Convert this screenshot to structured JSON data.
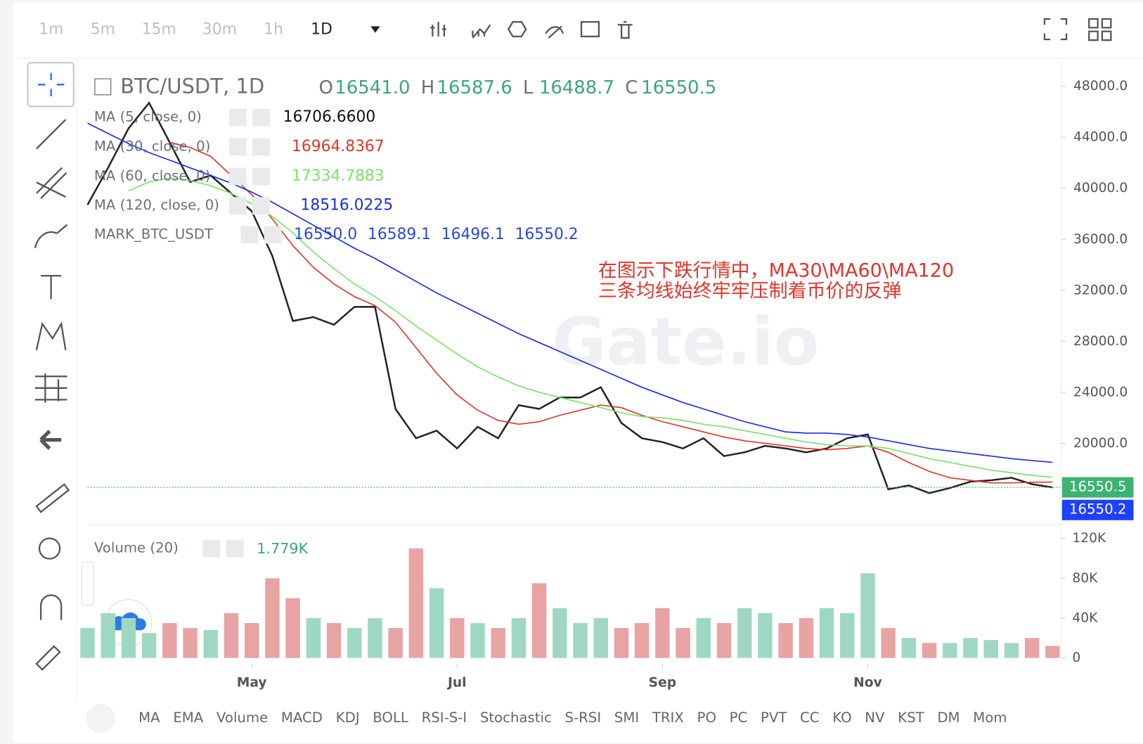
{
  "toolbar": {
    "intervals": [
      "1m",
      "5m",
      "15m",
      "30m",
      "1h",
      "1D"
    ]
  },
  "chart_data": {
    "type": "line",
    "symbol": "BTC/USDT, 1D",
    "ohlc": [
      {
        "key": "O",
        "text": "16541.0"
      },
      {
        "key": "H",
        "text": "16587.6"
      },
      {
        "key": "L",
        "text": "16488.7"
      },
      {
        "key": "C",
        "text": "16550.5"
      }
    ],
    "indicators": [
      {
        "name": "MA (5, close, 0)",
        "value": "16706.6600",
        "color": "#111111"
      },
      {
        "name": "MA (30, close, 0)",
        "value": "16964.8367",
        "color": "#e0352b"
      },
      {
        "name": "MA (60, close, 0)",
        "value": "17334.7883",
        "color": "#7be36a"
      },
      {
        "name": "MA (120, close, 0)",
        "value": "18516.0225",
        "color": "#1a2ee0"
      }
    ],
    "mark": {
      "name": "MARK_BTC_USDT",
      "values": [
        "16550.0",
        "16589.1",
        "16496.1",
        "16550.2"
      ]
    },
    "annotation": [
      "在图示下跌行情中，MA30\\MA60\\MA120",
      "三条均线始终牢牢压制着币价的反弹"
    ],
    "categories": [
      null,
      null,
      null,
      null,
      null,
      null,
      null,
      null,
      "May",
      null,
      null,
      null,
      null,
      null,
      null,
      null,
      null,
      null,
      "Jul",
      null,
      null,
      null,
      null,
      null,
      null,
      null,
      null,
      null,
      "Sep",
      null,
      null,
      null,
      null,
      null,
      null,
      null,
      null,
      null,
      "Nov",
      null,
      null,
      null,
      null,
      null,
      null,
      null,
      null,
      null
    ],
    "series": [
      {
        "name": "BTC/USDT",
        "color": "#222222",
        "values": [
          38700,
          41600,
          44700,
          46700,
          43600,
          40500,
          41000,
          39600,
          38200,
          34700,
          29600,
          29900,
          29300,
          30700,
          30700,
          22700,
          20400,
          21000,
          19600,
          21300,
          20400,
          23000,
          22700,
          23600,
          23600,
          24400,
          21600,
          20400,
          20100,
          19600,
          20400,
          19000,
          19300,
          19800,
          19600,
          19300,
          19600,
          20400,
          20700,
          16400,
          16700,
          16100,
          16500,
          17000,
          17100,
          17300,
          16800,
          16550
        ]
      },
      {
        "name": "MA30",
        "color": "#e0352b",
        "values": [
          null,
          null,
          null,
          null,
          43600,
          43200,
          42500,
          41000,
          39500,
          37600,
          35500,
          33800,
          32500,
          31500,
          30800,
          29500,
          27500,
          25500,
          23800,
          22600,
          21800,
          21500,
          21700,
          22200,
          22600,
          23000,
          22800,
          22200,
          21700,
          21300,
          20900,
          20500,
          20200,
          20000,
          19800,
          19600,
          19500,
          19600,
          19800,
          19300,
          18500,
          17800,
          17300,
          17100,
          16900,
          16900,
          16950,
          16965
        ]
      },
      {
        "name": "MA60",
        "color": "#7be36a",
        "values": [
          null,
          null,
          39800,
          40500,
          40800,
          40600,
          40200,
          39600,
          38800,
          37800,
          36500,
          35000,
          33700,
          32500,
          31500,
          30400,
          29200,
          28100,
          27000,
          26000,
          25200,
          24500,
          24000,
          23600,
          23200,
          22800,
          22400,
          22100,
          22000,
          21800,
          21500,
          21300,
          21000,
          20700,
          20400,
          20100,
          19900,
          19800,
          19800,
          19600,
          19200,
          18800,
          18500,
          18200,
          17900,
          17700,
          17500,
          17335
        ]
      },
      {
        "name": "MA120",
        "color": "#1a2ee0",
        "values": [
          45100,
          44300,
          43500,
          42800,
          42200,
          41600,
          41000,
          40400,
          39700,
          38900,
          38000,
          37100,
          36200,
          35300,
          34500,
          33600,
          32700,
          31800,
          31000,
          30200,
          29400,
          28600,
          27900,
          27200,
          26500,
          25800,
          25100,
          24400,
          23800,
          23200,
          22700,
          22200,
          21700,
          21300,
          20900,
          20800,
          20800,
          20700,
          20500,
          20200,
          19900,
          19600,
          19400,
          19200,
          19000,
          18800,
          18650,
          18516
        ]
      }
    ],
    "ylim": [
      13700,
      49900
    ],
    "yticks": [
      {
        "value": 48000,
        "label": "48000.0"
      },
      {
        "value": 44000,
        "label": "44000.0"
      },
      {
        "value": 40000,
        "label": "40000.0"
      },
      {
        "value": 36000,
        "label": "36000.0"
      },
      {
        "value": 32000,
        "label": "32000.0"
      },
      {
        "value": 28000,
        "label": "28000.0"
      },
      {
        "value": 24000,
        "label": "24000.0"
      },
      {
        "value": 20000,
        "label": "20000.0"
      }
    ],
    "price_tags": [
      {
        "value": 16550.5,
        "color": "#3cb371"
      },
      {
        "value": 16550.2,
        "color": "#1e40ff"
      }
    ],
    "volume": {
      "title": "Volume (20)",
      "value": "1.779K",
      "up_color": "#9fd8c2",
      "down_color": "#e8a3a3",
      "values": [
        30000,
        45000,
        40000,
        25000,
        35000,
        30000,
        28000,
        45000,
        35000,
        80000,
        60000,
        40000,
        35000,
        30000,
        40000,
        30000,
        110000,
        70000,
        40000,
        35000,
        30000,
        40000,
        75000,
        50000,
        35000,
        40000,
        30000,
        35000,
        50000,
        30000,
        40000,
        35000,
        50000,
        45000,
        35000,
        40000,
        50000,
        45000,
        85000,
        30000,
        20000,
        15000,
        15000,
        20000,
        18000,
        15000,
        20000,
        12000
      ],
      "ylim": [
        0,
        126000
      ],
      "yticks": [
        0,
        {
          "value": 40000,
          "label": "40K"
        },
        {
          "value": 80000,
          "label": "80K"
        },
        {
          "value": 120000,
          "label": "120K"
        }
      ]
    },
    "indicator_tabs": [
      "MA",
      "EMA",
      "Volume",
      "MACD",
      "KDJ",
      "BOLL",
      "RSI-S-I",
      "Stochastic",
      "S-RSI",
      "SMI",
      "TRIX",
      "PO",
      "PC",
      "PVT",
      "CC",
      "KO",
      "NV",
      "KST",
      "DM",
      "Mom"
    ]
  }
}
